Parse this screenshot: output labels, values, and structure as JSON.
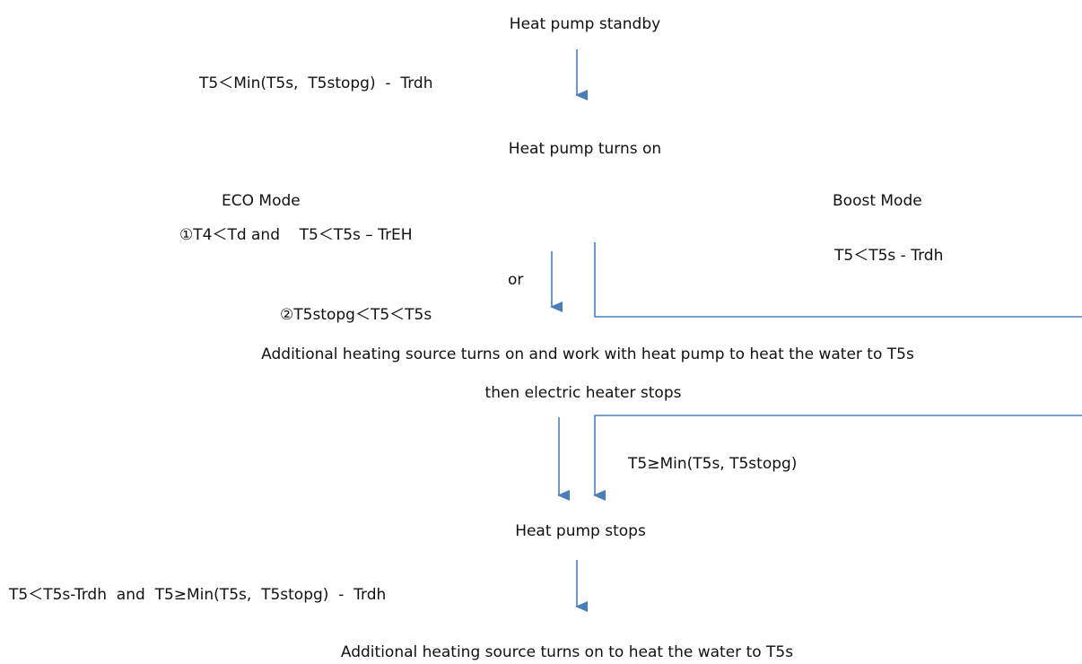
{
  "nodes": [
    {
      "label": "Heat pump standby"
    },
    {
      "label": "Heat pump turns on"
    },
    {
      "label": "Additional heating source turns on and work with heat pump to heat the water to T5s"
    },
    {
      "label": "then electric heater stops"
    },
    {
      "label": "Heat pump stops"
    },
    {
      "label": "Additional heating source turns on to heat the water to T5s"
    }
  ],
  "modes": [
    {
      "label": "ECO Mode"
    },
    {
      "label": "Boost Mode"
    }
  ],
  "conditions": [
    {
      "label": "T5＜Min(T5s,  T5stopg)  -  Trdh"
    },
    {
      "label": "①T4＜Td and    T5＜T5s – TrEH"
    },
    {
      "label": "or"
    },
    {
      "label": "②T5stopg＜T5＜T5s"
    },
    {
      "label": "T5＜T5s - Trdh"
    },
    {
      "label": "T5≥Min(T5s, T5stopg)"
    },
    {
      "label": "T5＜T5s-Trdh  and  T5≥Min(T5s,  T5stopg)  -  Trdh"
    }
  ]
}
